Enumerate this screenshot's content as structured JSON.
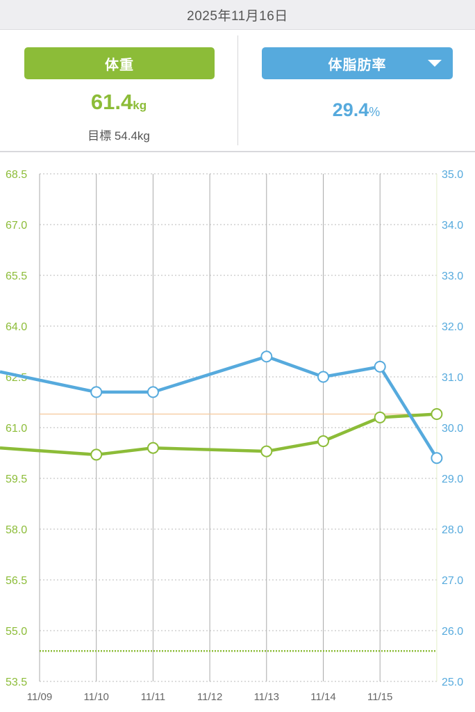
{
  "header": {
    "date": "2025年11月16日"
  },
  "weight_panel": {
    "tab_label": "体重",
    "value": "61.4",
    "unit": "kg",
    "goal_text": "目標 54.4kg",
    "color": "#8cbc38"
  },
  "bodyfat_panel": {
    "selector_label": "体脂肪率",
    "value": "29.4",
    "unit": "%",
    "color": "#56aadd"
  },
  "chart_data": {
    "type": "line",
    "categories": [
      "11/09",
      "11/10",
      "11/11",
      "11/12",
      "11/13",
      "11/14",
      "11/15",
      "11/16"
    ],
    "x_tick_labels": [
      "11/09",
      "11/10",
      "11/11",
      "11/12",
      "11/13",
      "11/14",
      "11/15"
    ],
    "left_axis": {
      "ticks": [
        "68.5",
        "67.0",
        "65.5",
        "64.0",
        "62.5",
        "61.0",
        "59.5",
        "58.0",
        "56.5",
        "55.0",
        "53.5"
      ],
      "ylim": [
        53.5,
        68.5
      ],
      "color": "#8cbc38"
    },
    "right_axis": {
      "ticks": [
        "35.0",
        "34.0",
        "33.0",
        "32.0",
        "31.0",
        "30.0",
        "29.0",
        "28.0",
        "27.0",
        "26.0",
        "25.0"
      ],
      "ylim": [
        25.0,
        35.0
      ],
      "color": "#56aadd"
    },
    "grid": true,
    "series": [
      {
        "axis": "left",
        "color": "#8cbc38",
        "points": [
          {
            "x": "11/09",
            "y": 60.4,
            "marker": false
          },
          {
            "x": "11/10",
            "y": 60.2
          },
          {
            "x": "11/11",
            "y": 60.4
          },
          {
            "x": "11/13",
            "y": 60.3
          },
          {
            "x": "11/14",
            "y": 60.6
          },
          {
            "x": "11/15",
            "y": 61.3
          },
          {
            "x": "11/16",
            "y": 61.4
          }
        ]
      },
      {
        "axis": "right",
        "color": "#56aadd",
        "points": [
          {
            "x": "11/09",
            "y": 31.1,
            "marker": false
          },
          {
            "x": "11/10",
            "y": 30.7
          },
          {
            "x": "11/11",
            "y": 30.7
          },
          {
            "x": "11/13",
            "y": 31.4
          },
          {
            "x": "11/14",
            "y": 31.0
          },
          {
            "x": "11/15",
            "y": 31.2
          },
          {
            "x": "11/16",
            "y": 29.4
          }
        ]
      }
    ],
    "reference_lines": [
      {
        "axis": "left",
        "y": 61.4,
        "style": "solid",
        "color": "#f5c89a"
      },
      {
        "axis": "left",
        "y": 54.4,
        "style": "dotted",
        "color": "#8cbc38"
      }
    ]
  }
}
